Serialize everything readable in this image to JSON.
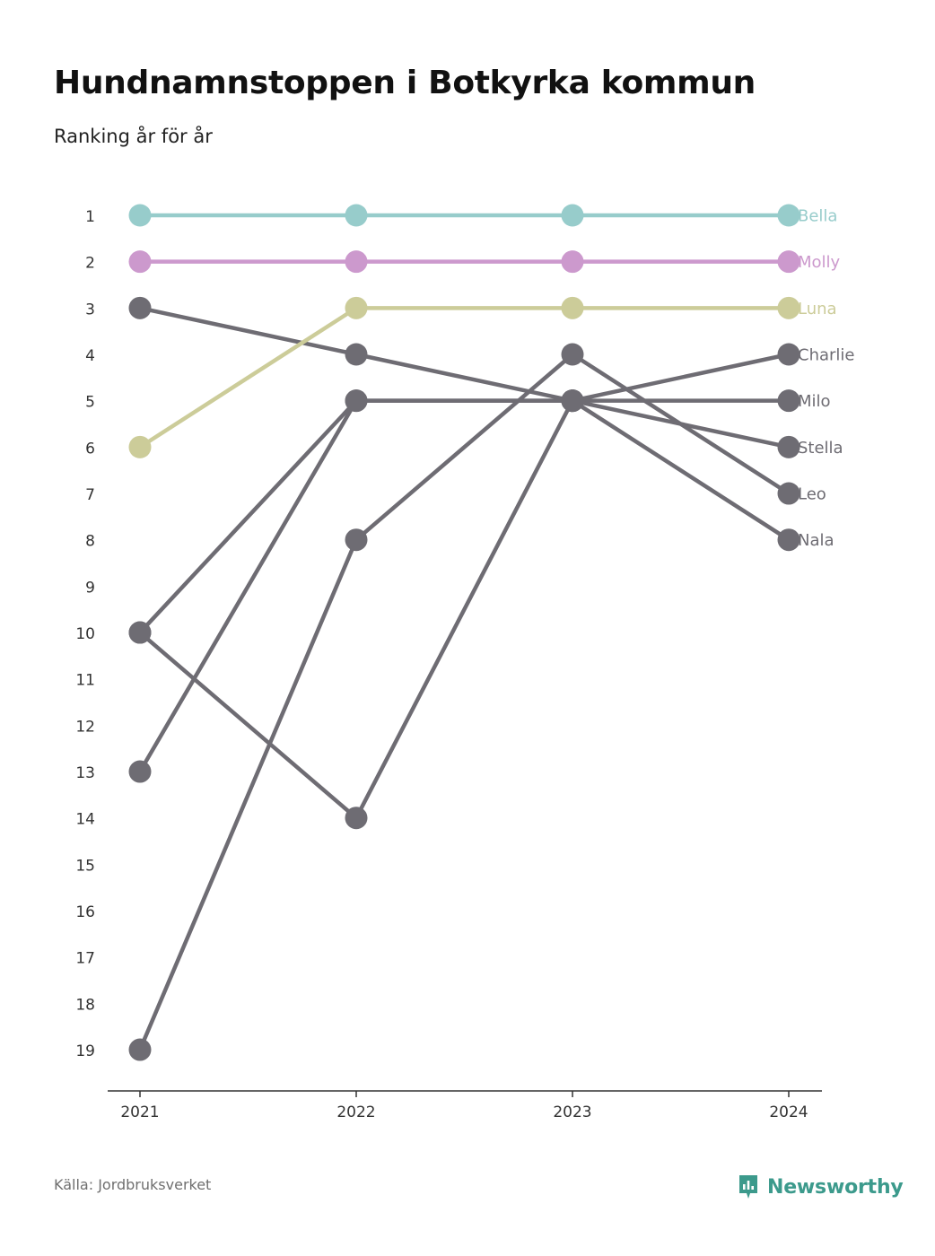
{
  "title": "Hundnamnstoppen i Botkyrka kommun",
  "subtitle": "Ranking år för år",
  "source": "Källa: Jordbruksverket",
  "brand": {
    "name": "Newsworthy",
    "icon": "newsworthy-logo-icon",
    "color": "#3c9a8c"
  },
  "chart_data": {
    "type": "line",
    "title": "Hundnamnstoppen i Botkyrka kommun",
    "subtitle": "Ranking år för år",
    "x": [
      "2021",
      "2022",
      "2023",
      "2024"
    ],
    "y_ticks": [
      1,
      2,
      3,
      4,
      5,
      6,
      7,
      8,
      9,
      10,
      11,
      12,
      13,
      14,
      15,
      16,
      17,
      18,
      19
    ],
    "ylim": [
      1,
      19
    ],
    "y_reversed": true,
    "grid": false,
    "legend": "direct labels right of last point",
    "series": [
      {
        "name": "Bella",
        "values": [
          1,
          1,
          1,
          1
        ],
        "color": "#97cccb"
      },
      {
        "name": "Molly",
        "values": [
          2,
          2,
          2,
          2
        ],
        "color": "#cc99cd"
      },
      {
        "name": "Luna",
        "values": [
          6,
          3,
          3,
          3
        ],
        "color": "#cccc99"
      },
      {
        "name": "Charlie",
        "values": [
          13,
          5,
          5,
          4
        ],
        "color": "#6e6c73"
      },
      {
        "name": "Milo",
        "values": [
          3,
          4,
          5,
          5
        ],
        "color": "#6e6c73"
      },
      {
        "name": "Stella",
        "values": [
          10,
          5,
          5,
          6
        ],
        "color": "#6e6c73"
      },
      {
        "name": "Leo",
        "values": [
          19,
          8,
          4,
          7
        ],
        "color": "#6e6c73"
      },
      {
        "name": "Nala",
        "values": [
          10,
          14,
          5,
          8
        ],
        "color": "#6e6c73"
      }
    ]
  }
}
